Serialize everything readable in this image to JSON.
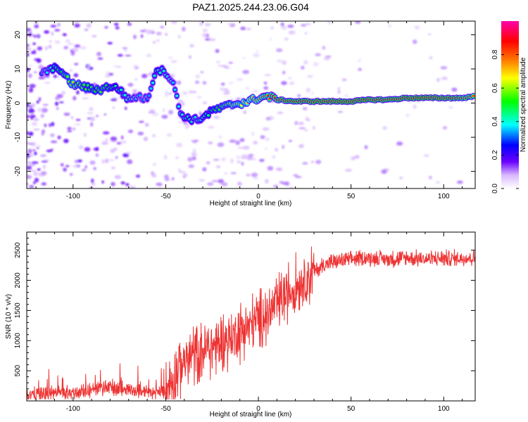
{
  "chart_data": [
    {
      "type": "heatmap",
      "title": "PAZ1.2025.244.23.06.G04",
      "xlabel": "Height of straight line (km)",
      "ylabel": "Frequency (Hz)",
      "xlim": [
        -125,
        117
      ],
      "ylim": [
        -25,
        24
      ],
      "xticks": [
        -100,
        -50,
        0,
        50,
        100
      ],
      "yticks": [
        -20,
        -10,
        0,
        10,
        20
      ],
      "colorbar": {
        "label": "Normalized spectral amplitude",
        "range": [
          0.0,
          1.0
        ],
        "ticks": [
          0.0,
          0.2,
          0.4,
          0.6,
          0.8
        ],
        "tick_labels": [
          "0.0",
          "0.2",
          "0.4",
          "0.6",
          "0.8"
        ],
        "colors": [
          "#ffffff",
          "#6a00ff",
          "#0000ff",
          "#00ffff",
          "#00ff00",
          "#ffff00",
          "#ff8000",
          "#ff0000",
          "#ff00aa"
        ]
      },
      "ridge": [
        {
          "x": -117,
          "y": 9.0,
          "a": 0.3
        },
        {
          "x": -113,
          "y": 9.5,
          "a": 0.4
        },
        {
          "x": -108,
          "y": 10.5,
          "a": 0.5
        },
        {
          "x": -104,
          "y": 7.5,
          "a": 0.55
        },
        {
          "x": -100,
          "y": 5.5,
          "a": 0.6
        },
        {
          "x": -95,
          "y": 5.0,
          "a": 0.55
        },
        {
          "x": -90,
          "y": 4.0,
          "a": 0.5
        },
        {
          "x": -85,
          "y": 4.0,
          "a": 0.55
        },
        {
          "x": -80,
          "y": 5.0,
          "a": 0.5
        },
        {
          "x": -75,
          "y": 4.0,
          "a": 0.45
        },
        {
          "x": -70,
          "y": 1.0,
          "a": 0.4
        },
        {
          "x": -65,
          "y": 2.0,
          "a": 0.35
        },
        {
          "x": -60,
          "y": 1.0,
          "a": 0.3
        },
        {
          "x": -55,
          "y": 10.0,
          "a": 0.45
        },
        {
          "x": -50,
          "y": 9.0,
          "a": 0.4
        },
        {
          "x": -46,
          "y": 6.0,
          "a": 0.35
        },
        {
          "x": -42,
          "y": -3.0,
          "a": 0.4
        },
        {
          "x": -38,
          "y": -4.5,
          "a": 0.45
        },
        {
          "x": -33,
          "y": -5.0,
          "a": 0.4
        },
        {
          "x": -28,
          "y": -3.5,
          "a": 0.45
        },
        {
          "x": -24,
          "y": -2.0,
          "a": 0.5
        },
        {
          "x": -20,
          "y": -1.5,
          "a": 0.55
        },
        {
          "x": -15,
          "y": -0.5,
          "a": 0.6
        },
        {
          "x": -10,
          "y": 0.0,
          "a": 0.65
        },
        {
          "x": -5,
          "y": 0.5,
          "a": 0.7
        },
        {
          "x": 0,
          "y": 1.5,
          "a": 0.75
        },
        {
          "x": 5,
          "y": 2.0,
          "a": 0.8
        },
        {
          "x": 10,
          "y": 1.0,
          "a": 0.85
        },
        {
          "x": 20,
          "y": 0.5,
          "a": 0.9
        },
        {
          "x": 30,
          "y": 0.5,
          "a": 0.92
        },
        {
          "x": 40,
          "y": 0.5,
          "a": 0.94
        },
        {
          "x": 50,
          "y": 0.5,
          "a": 0.95
        },
        {
          "x": 60,
          "y": 1.0,
          "a": 0.92
        },
        {
          "x": 70,
          "y": 1.0,
          "a": 0.9
        },
        {
          "x": 80,
          "y": 1.5,
          "a": 0.92
        },
        {
          "x": 90,
          "y": 1.5,
          "a": 0.95
        },
        {
          "x": 100,
          "y": 1.5,
          "a": 0.9
        },
        {
          "x": 110,
          "y": 1.5,
          "a": 0.85
        },
        {
          "x": 117,
          "y": 2.0,
          "a": 0.8
        }
      ]
    },
    {
      "type": "line",
      "title": "",
      "xlabel": "Height of straight line (km)",
      "ylabel": "SNR (10 * v/v)",
      "xlim": [
        -125,
        117
      ],
      "ylim": [
        0,
        2800
      ],
      "xticks": [
        -100,
        -50,
        0,
        50,
        100
      ],
      "yticks": [
        500,
        1000,
        1500,
        2000,
        2500
      ],
      "color": "#ee3333",
      "series": [
        {
          "name": "SNR",
          "x": [
            -125,
            -115,
            -105,
            -95,
            -85,
            -80,
            -75,
            -70,
            -65,
            -60,
            -55,
            -50,
            -45,
            -40,
            -35,
            -30,
            -25,
            -20,
            -15,
            -10,
            -5,
            0,
            5,
            10,
            15,
            20,
            25,
            30,
            35,
            40,
            45,
            50,
            55,
            60,
            65,
            70,
            75,
            80,
            85,
            90,
            95,
            100,
            105,
            110,
            117
          ],
          "y": [
            100,
            110,
            130,
            150,
            200,
            230,
            210,
            190,
            170,
            150,
            140,
            170,
            450,
            650,
            750,
            850,
            900,
            950,
            1050,
            1150,
            1250,
            1350,
            1450,
            1600,
            1750,
            1900,
            2050,
            2150,
            2250,
            2300,
            2330,
            2350,
            2360,
            2370,
            2360,
            2350,
            2360,
            2370,
            2360,
            2350,
            2360,
            2370,
            2360,
            2370,
            2380
          ]
        }
      ]
    }
  ]
}
